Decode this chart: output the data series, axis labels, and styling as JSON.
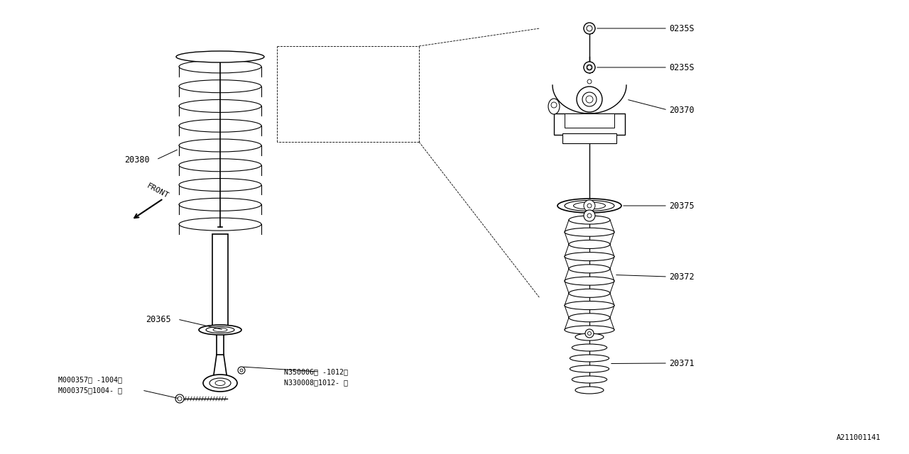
{
  "bg_color": "#ffffff",
  "line_color": "#000000",
  "fig_width": 12.8,
  "fig_height": 6.4,
  "diagram_id": "A211001141",
  "parts": {
    "coil_spring_label": "20380",
    "strut_lower_label": "20365",
    "bolt1_label": "M000357（ -1004）",
    "bolt2_label": "M000375（1004- ）",
    "bolt3_label": "N350006（ -1012）",
    "bolt4_label": "N330008（1012- ）",
    "nut1_label": "0235S",
    "nut2_label": "0235S",
    "mount_label": "20370",
    "seat_label": "20375",
    "bump_label": "20372",
    "stopper_label": "20371"
  },
  "front_arrow_text": "FRONT"
}
